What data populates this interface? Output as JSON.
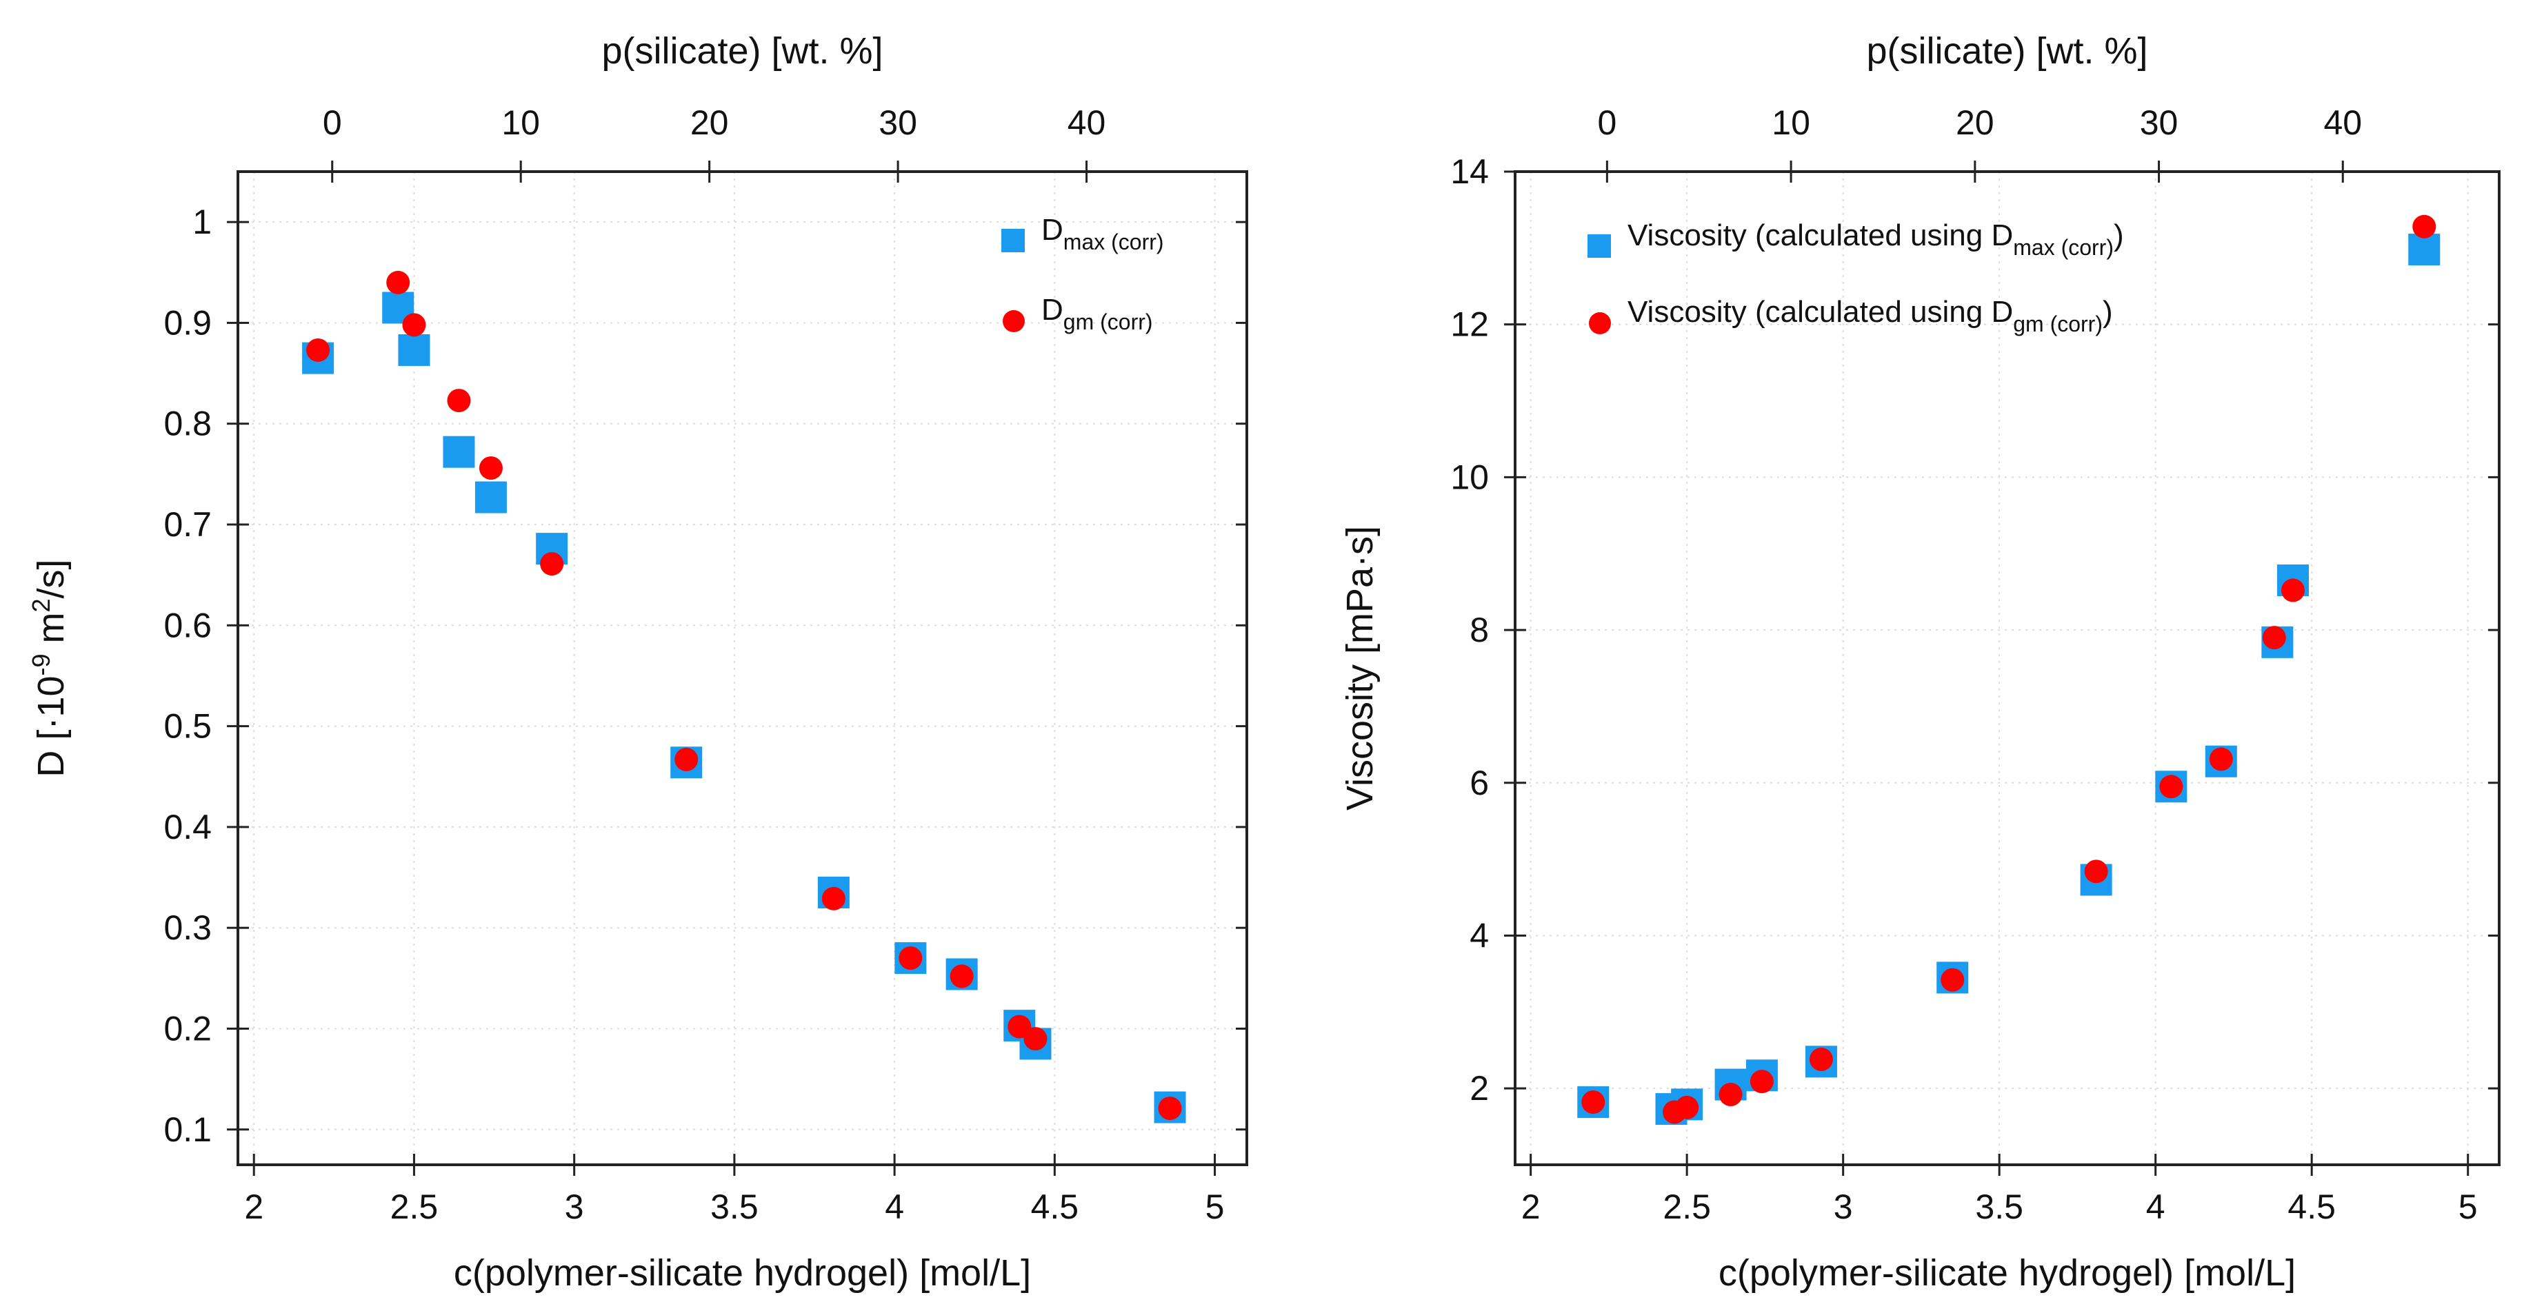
{
  "chart_data": [
    {
      "type": "scatter",
      "xlabel": "c(polymer-silicate hydrogel) [mol/L]",
      "x2label": "p(silicate) [wt. %]",
      "ylabel_parts": [
        "D [·10",
        "-9",
        " m",
        "2",
        "/s]"
      ],
      "xlim": [
        1.95,
        5.1
      ],
      "ylim": [
        0.065,
        1.05
      ],
      "x2lim": [
        -5,
        48.5
      ],
      "xticks": [
        "2",
        "2.5",
        "3",
        "3.5",
        "4",
        "4.5",
        "5"
      ],
      "yticks": [
        "0.1",
        "0.2",
        "0.3",
        "0.4",
        "0.5",
        "0.6",
        "0.7",
        "0.8",
        "0.9",
        "1"
      ],
      "x2ticks": [
        "0",
        "10",
        "20",
        "30",
        "40"
      ],
      "grid": true,
      "legend_position": "top-right",
      "series": [
        {
          "name": "D_max (corr)",
          "legend_main": "D",
          "legend_sub": "max (corr)",
          "marker": "square",
          "color": "#1a9bf0",
          "x": [
            2.2,
            2.45,
            2.5,
            2.64,
            2.74,
            2.93,
            3.35,
            3.81,
            4.05,
            4.21,
            4.39,
            4.44,
            4.86
          ],
          "y": [
            0.865,
            0.915,
            0.873,
            0.772,
            0.727,
            0.676,
            0.464,
            0.335,
            0.27,
            0.254,
            0.203,
            0.185,
            0.122
          ]
        },
        {
          "name": "D_gm (corr)",
          "legend_main": "D",
          "legend_sub": "gm (corr)",
          "marker": "circle",
          "color": "#ff0000",
          "x": [
            2.2,
            2.45,
            2.5,
            2.64,
            2.74,
            2.93,
            3.35,
            3.81,
            4.05,
            4.21,
            4.39,
            4.44,
            4.86
          ],
          "y": [
            0.873,
            0.94,
            0.898,
            0.823,
            0.756,
            0.661,
            0.467,
            0.329,
            0.27,
            0.252,
            0.202,
            0.19,
            0.121
          ]
        }
      ]
    },
    {
      "type": "scatter",
      "xlabel": "c(polymer-silicate hydrogel) [mol/L]",
      "x2label": "p(silicate) [wt. %]",
      "ylabel_parts": [
        "Viscosity [mPa·s]"
      ],
      "xlim": [
        1.95,
        5.1
      ],
      "ylim": [
        1.0,
        14.0
      ],
      "x2lim": [
        -5,
        48.5
      ],
      "xticks": [
        "2",
        "2.5",
        "3",
        "3.5",
        "4",
        "4.5",
        "5"
      ],
      "yticks": [
        "2",
        "4",
        "6",
        "8",
        "10",
        "12",
        "14"
      ],
      "x2ticks": [
        "0",
        "10",
        "20",
        "30",
        "40"
      ],
      "grid": true,
      "legend_position": "top-left",
      "series": [
        {
          "name": "Viscosity (calculated using D_max (corr))",
          "legend_main": "Viscosity (calculated using D",
          "legend_sub": "max (corr)",
          "legend_end": ")",
          "marker": "square",
          "color": "#1a9bf0",
          "x": [
            2.2,
            2.45,
            2.5,
            2.64,
            2.74,
            2.93,
            3.35,
            3.81,
            4.05,
            4.21,
            4.39,
            4.44,
            4.86
          ],
          "y": [
            1.82,
            1.73,
            1.79,
            2.05,
            2.17,
            2.35,
            3.45,
            4.73,
            5.95,
            6.28,
            7.84,
            8.65,
            12.98
          ]
        },
        {
          "name": "Viscosity (calculated using D_gm (corr))",
          "legend_main": "Viscosity (calculated using D",
          "legend_sub": "gm (corr)",
          "legend_end": ")",
          "marker": "circle",
          "color": "#ff0000",
          "x": [
            2.2,
            2.46,
            2.5,
            2.64,
            2.74,
            2.93,
            3.35,
            3.81,
            4.05,
            4.21,
            4.38,
            4.44,
            4.86
          ],
          "y": [
            1.82,
            1.69,
            1.75,
            1.92,
            2.09,
            2.38,
            3.42,
            4.84,
            5.95,
            6.31,
            7.9,
            8.52,
            13.28
          ]
        }
      ]
    }
  ]
}
